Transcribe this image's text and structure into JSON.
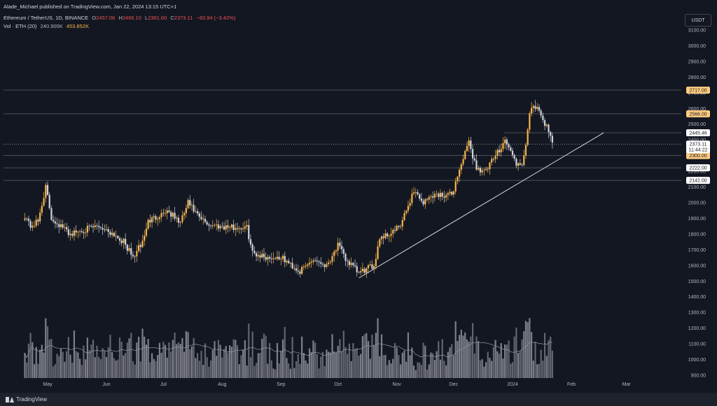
{
  "header": {
    "published_line": "Alade_Michael published on TradingView.com, Jan 22, 2024 13:15 UTC+1",
    "symbol": "Ethereum / TetherUS, 1D, BINANCE",
    "o_label": "O",
    "o_value": "2457.06",
    "h_label": "H",
    "h_value": "2466.10",
    "l_label": "L",
    "l_value": "2361.60",
    "c_label": "C",
    "c_value": "2373.11",
    "change": "−83.94 (−3.42%)",
    "vol_label": "Vol · ETH (20)",
    "vol_ma": "240.905K",
    "vol_value": "453.852K"
  },
  "currency_button": "USDT",
  "footer": {
    "brand": "TradingView"
  },
  "colors": {
    "bg": "#131722",
    "up": "#f5b54c",
    "down": "#d1d4dc",
    "grid": "#5d606b",
    "text": "#b2b5be",
    "trend": "#d1d4dc"
  },
  "chart_data": {
    "type": "candlestick",
    "y_ticks": [
      "900.00",
      "1000.00",
      "1100.00",
      "1200.00",
      "1300.00",
      "1400.00",
      "1500.00",
      "1600.00",
      "1700.00",
      "1800.00",
      "1900.00",
      "2000.00",
      "2100.00",
      "2200.00",
      "2300.00",
      "2400.00",
      "2500.00",
      "2600.00",
      "2700.00",
      "2800.00",
      "2900.00",
      "3000.00",
      "3100.00"
    ],
    "x_ticks": [
      "May",
      "Jun",
      "Jul",
      "Aug",
      "Sep",
      "Oct",
      "Nov",
      "Dec",
      "2024",
      "Feb",
      "Mar"
    ],
    "ylim": [
      860,
      3150
    ],
    "last_price": {
      "value": "2373.11",
      "countdown": "11:44:22"
    },
    "horizontal_levels": [
      {
        "value": 2717,
        "label": "2717.00"
      },
      {
        "value": 2566,
        "label": "2566.00"
      },
      {
        "value": 2300,
        "label": "2300.00"
      },
      {
        "value": 2222,
        "label": "2222.00"
      },
      {
        "value": 2142,
        "label": "2142.00"
      }
    ],
    "marker_level": {
      "value": 2445.46,
      "label": "2445.46"
    },
    "trendline": {
      "from": {
        "date": "2023-10-12",
        "price": 1520
      },
      "to": {
        "date": "2024-02-18",
        "price": 2445
      }
    },
    "price_anchors": [
      [
        "2023-04-19",
        1920
      ],
      [
        "2023-04-22",
        1850
      ],
      [
        "2023-04-26",
        1880
      ],
      [
        "2023-04-30",
        2100
      ],
      [
        "2023-05-03",
        1900
      ],
      [
        "2023-05-08",
        1850
      ],
      [
        "2023-05-13",
        1800
      ],
      [
        "2023-05-18",
        1820
      ],
      [
        "2023-05-28",
        1850
      ],
      [
        "2023-06-05",
        1800
      ],
      [
        "2023-06-10",
        1750
      ],
      [
        "2023-06-15",
        1650
      ],
      [
        "2023-06-20",
        1750
      ],
      [
        "2023-06-23",
        1880
      ],
      [
        "2023-07-03",
        1950
      ],
      [
        "2023-07-10",
        1870
      ],
      [
        "2023-07-14",
        2000
      ],
      [
        "2023-07-20",
        1900
      ],
      [
        "2023-07-25",
        1860
      ],
      [
        "2023-08-08",
        1840
      ],
      [
        "2023-08-14",
        1840
      ],
      [
        "2023-08-17",
        1680
      ],
      [
        "2023-08-25",
        1650
      ],
      [
        "2023-09-01",
        1650
      ],
      [
        "2023-09-11",
        1560
      ],
      [
        "2023-09-18",
        1640
      ],
      [
        "2023-09-25",
        1600
      ],
      [
        "2023-10-01",
        1730
      ],
      [
        "2023-10-05",
        1640
      ],
      [
        "2023-10-12",
        1550
      ],
      [
        "2023-10-20",
        1600
      ],
      [
        "2023-10-23",
        1780
      ],
      [
        "2023-10-28",
        1800
      ],
      [
        "2023-11-03",
        1850
      ],
      [
        "2023-11-10",
        2080
      ],
      [
        "2023-11-15",
        2000
      ],
      [
        "2023-11-20",
        2050
      ],
      [
        "2023-11-30",
        2050
      ],
      [
        "2023-12-05",
        2250
      ],
      [
        "2023-12-09",
        2380
      ],
      [
        "2023-12-13",
        2220
      ],
      [
        "2023-12-18",
        2200
      ],
      [
        "2023-12-23",
        2300
      ],
      [
        "2023-12-28",
        2400
      ],
      [
        "2024-01-03",
        2250
      ],
      [
        "2024-01-06",
        2220
      ],
      [
        "2024-01-10",
        2550
      ],
      [
        "2024-01-12",
        2620
      ],
      [
        "2024-01-16",
        2560
      ],
      [
        "2024-01-19",
        2480
      ],
      [
        "2024-01-22",
        2373
      ]
    ],
    "volume_note": "volume in ETH, 20-period moving average 240.905K, last 453.852K"
  }
}
